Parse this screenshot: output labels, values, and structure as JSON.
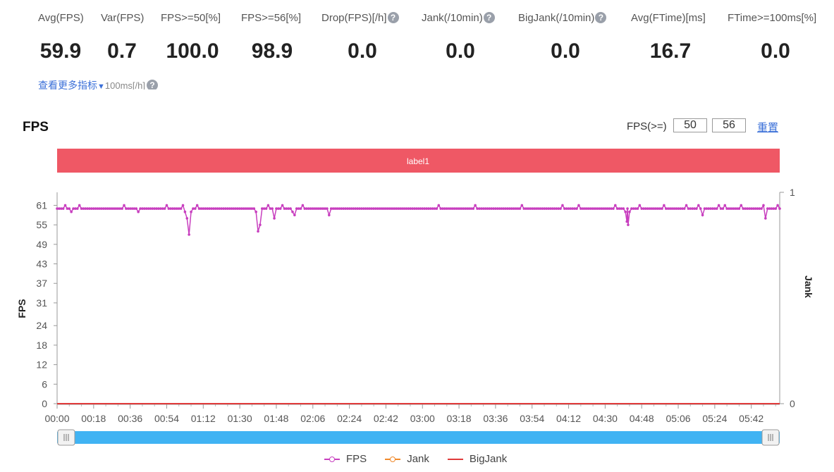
{
  "metrics": [
    {
      "label": "Avg(FPS)",
      "value": "59.9",
      "help": false
    },
    {
      "label": "Var(FPS)",
      "value": "0.7",
      "help": false
    },
    {
      "label": "FPS>=50[%]",
      "value": "100.0",
      "help": false
    },
    {
      "label": "FPS>=56[%]",
      "value": "98.9",
      "help": false
    },
    {
      "label": "Drop(FPS)[/h]",
      "value": "0.0",
      "help": true
    },
    {
      "label": "Jank(/10min)",
      "value": "0.0",
      "help": true
    },
    {
      "label": "BigJank(/10min)",
      "value": "0.0",
      "help": true
    },
    {
      "label": "Avg(FTime)[ms]",
      "value": "16.7",
      "help": false
    },
    {
      "label": "FTime>=100ms[%]",
      "value": "0.0",
      "help": false
    }
  ],
  "more_link": {
    "label": "查看更多指标",
    "overlap_text": "100ms[/h]"
  },
  "chart_header": {
    "title": "FPS",
    "threshold_label": "FPS(>=)",
    "threshold_low": "50",
    "threshold_high": "56",
    "reset_label": "重置"
  },
  "icons": {
    "help": "question-circle-icon",
    "dropdown": "caret-down-icon"
  },
  "chart_data": {
    "type": "line",
    "title": "FPS",
    "annotation_band": {
      "label": "label1",
      "color": "#ef5865"
    },
    "ylabel": "FPS",
    "y2label": "Jank",
    "ylim": [
      0,
      65
    ],
    "y_ticks": [
      0,
      6,
      12,
      18,
      24,
      31,
      37,
      43,
      49,
      55,
      61
    ],
    "y2lim": [
      0,
      1
    ],
    "y2_ticks": [
      0,
      1
    ],
    "x_ticks": [
      "00:00",
      "00:18",
      "00:36",
      "00:54",
      "01:12",
      "01:30",
      "01:48",
      "02:06",
      "02:24",
      "02:42",
      "03:00",
      "03:18",
      "03:36",
      "03:54",
      "04:12",
      "04:30",
      "04:48",
      "05:06",
      "05:24",
      "05:42"
    ],
    "x_unit": "seconds",
    "x_range": [
      0,
      356
    ],
    "series": [
      {
        "name": "FPS",
        "color": "#c83fbf",
        "axis": "left",
        "baseline": 60,
        "points": [
          [
            4,
            61
          ],
          [
            7,
            59
          ],
          [
            11,
            61
          ],
          [
            33,
            61
          ],
          [
            40,
            59
          ],
          [
            54,
            61
          ],
          [
            62,
            61
          ],
          [
            63,
            59
          ],
          [
            64,
            57
          ],
          [
            65,
            52
          ],
          [
            66,
            59
          ],
          [
            67,
            60
          ],
          [
            69,
            61
          ],
          [
            98,
            59
          ],
          [
            99,
            53
          ],
          [
            100,
            55
          ],
          [
            101,
            60
          ],
          [
            104,
            61
          ],
          [
            107,
            57
          ],
          [
            111,
            61
          ],
          [
            116,
            59
          ],
          [
            117,
            58
          ],
          [
            121,
            61
          ],
          [
            134,
            58
          ],
          [
            188,
            61
          ],
          [
            206,
            61
          ],
          [
            229,
            61
          ],
          [
            249,
            61
          ],
          [
            257,
            61
          ],
          [
            275,
            61
          ],
          [
            280,
            59
          ],
          [
            280.7,
            56
          ],
          [
            281.3,
            55
          ],
          [
            282,
            59
          ],
          [
            287,
            61
          ],
          [
            299,
            61
          ],
          [
            310,
            61
          ],
          [
            316,
            61
          ],
          [
            318,
            58
          ],
          [
            326,
            61
          ],
          [
            329,
            61
          ],
          [
            337,
            61
          ],
          [
            348,
            61
          ],
          [
            349,
            57
          ],
          [
            350,
            60
          ],
          [
            355,
            61
          ]
        ]
      },
      {
        "name": "Jank",
        "color": "#f08a2c",
        "axis": "right",
        "values": [
          0
        ]
      },
      {
        "name": "BigJank",
        "color": "#e03a3a",
        "axis": "right",
        "values": [
          0
        ]
      }
    ],
    "legend_position": "bottom-center"
  }
}
